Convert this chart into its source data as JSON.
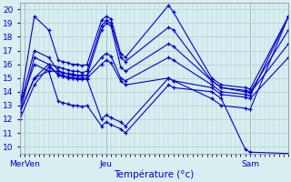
{
  "xlabel": "Température (°c)",
  "xlim": [
    0,
    56
  ],
  "ylim": [
    9.5,
    20.5
  ],
  "yticks": [
    10,
    11,
    12,
    13,
    14,
    15,
    16,
    17,
    18,
    19,
    20
  ],
  "xtick_positions": [
    1,
    18,
    48
  ],
  "xtick_labels": [
    "MerVen",
    "Jeu",
    "Sam"
  ],
  "bg_color": "#d8eef0",
  "grid_color": "#aacfcf",
  "line_color": "#0000cc",
  "series": [
    [
      13.0,
      19.5,
      18.5,
      16.3,
      16.2,
      16.1,
      16.0,
      16.0,
      15.9,
      16.0,
      19.2,
      19.5,
      19.3,
      16.8,
      16.5,
      20.3,
      19.8,
      15.0,
      14.5,
      14.3,
      14.2,
      19.5
    ],
    [
      12.5,
      16.5,
      16.0,
      15.8,
      15.7,
      15.6,
      15.5,
      15.5,
      15.4,
      15.5,
      18.8,
      19.2,
      19.0,
      16.5,
      16.2,
      18.7,
      18.5,
      14.8,
      14.3,
      14.0,
      13.9,
      17.5
    ],
    [
      12.5,
      15.0,
      15.5,
      15.5,
      15.4,
      15.3,
      15.2,
      15.2,
      15.2,
      15.2,
      16.5,
      16.8,
      16.6,
      15.0,
      14.8,
      16.5,
      16.3,
      14.5,
      14.0,
      13.8,
      13.7,
      19.5
    ],
    [
      13.0,
      17.0,
      16.5,
      15.5,
      15.4,
      15.3,
      15.3,
      15.2,
      15.2,
      15.2,
      18.5,
      19.0,
      18.8,
      15.8,
      15.5,
      17.5,
      17.3,
      14.8,
      14.3,
      14.1,
      14.0,
      18.5
    ],
    [
      12.0,
      14.5,
      15.8,
      15.3,
      15.2,
      15.1,
      15.0,
      15.0,
      15.0,
      15.0,
      16.0,
      16.3,
      16.1,
      14.8,
      14.5,
      15.0,
      14.8,
      14.3,
      13.8,
      13.6,
      13.5,
      16.5
    ],
    [
      12.5,
      15.0,
      16.0,
      15.2,
      15.1,
      15.0,
      15.0,
      14.9,
      14.9,
      14.9,
      12.0,
      12.3,
      12.1,
      11.8,
      11.5,
      15.0,
      14.8,
      13.5,
      13.0,
      12.8,
      12.7,
      19.5
    ],
    [
      13.0,
      16.0,
      15.5,
      13.3,
      13.2,
      13.1,
      13.0,
      13.0,
      12.9,
      13.0,
      11.5,
      11.8,
      11.6,
      11.3,
      11.0,
      14.5,
      14.3,
      14.0,
      13.5,
      9.8,
      9.6,
      9.5
    ]
  ],
  "x_positions": [
    0,
    3,
    6,
    8,
    9,
    10,
    11,
    12,
    13,
    14,
    17,
    18,
    19,
    21,
    22,
    31,
    32,
    40,
    42,
    47,
    48,
    56
  ]
}
